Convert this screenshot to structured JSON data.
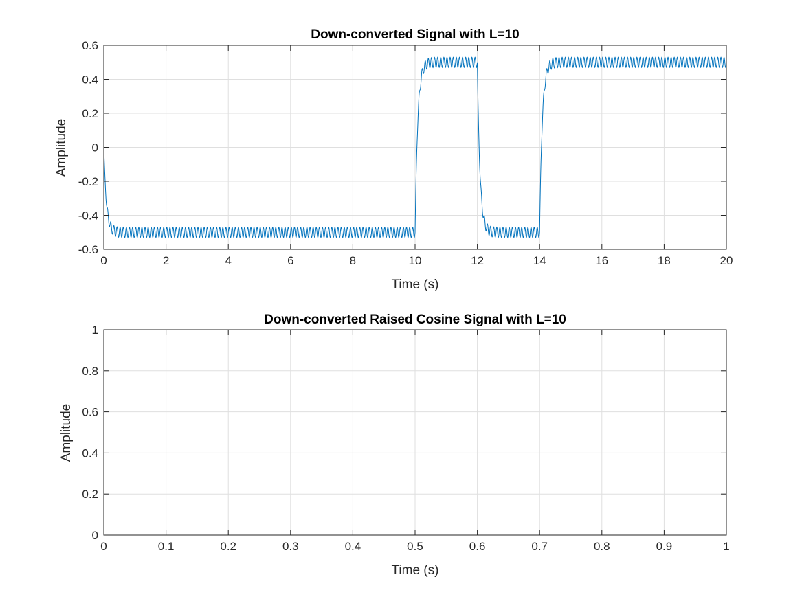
{
  "chart_data": [
    {
      "type": "line",
      "title": "Down-converted Signal with L=10",
      "xlabel": "Time (s)",
      "ylabel": "Amplitude",
      "xlim": [
        0,
        20
      ],
      "ylim": [
        -0.6,
        0.6
      ],
      "xticks": [
        0,
        2,
        4,
        6,
        8,
        10,
        12,
        14,
        16,
        18,
        20
      ],
      "xticklabels": [
        "0",
        "2",
        "4",
        "6",
        "8",
        "10",
        "12",
        "14",
        "16",
        "18",
        "20"
      ],
      "yticks": [
        -0.6,
        -0.4,
        -0.2,
        0,
        0.2,
        0.4,
        0.6
      ],
      "yticklabels": [
        "-0.6",
        "-0.4",
        "-0.2",
        "0",
        "0.2",
        "0.4",
        "0.6"
      ],
      "grid": true,
      "series": [
        {
          "color": "#0072BD",
          "segments": [
            {
              "t_start": 0,
              "t_end": 10,
              "level": -0.5
            },
            {
              "t_start": 10,
              "t_end": 12,
              "level": 0.5
            },
            {
              "t_start": 12,
              "t_end": 14,
              "level": -0.5
            },
            {
              "t_start": 14,
              "t_end": 20,
              "level": 0.5
            }
          ],
          "initial_value": 0,
          "ripple_amplitude": 0.03,
          "ripple_period": 0.1,
          "transition_time": 0.25
        }
      ]
    },
    {
      "type": "line",
      "title": "Down-converted Raised Cosine Signal with L=10",
      "xlabel": "Time (s)",
      "ylabel": "Amplitude",
      "xlim": [
        0,
        1
      ],
      "ylim": [
        0,
        1
      ],
      "xticks": [
        0,
        0.1,
        0.2,
        0.3,
        0.4,
        0.5,
        0.6,
        0.7,
        0.8,
        0.9,
        1
      ],
      "xticklabels": [
        "0",
        "0.1",
        "0.2",
        "0.3",
        "0.4",
        "0.5",
        "0.6",
        "0.7",
        "0.8",
        "0.9",
        "1"
      ],
      "yticks": [
        0,
        0.2,
        0.4,
        0.6,
        0.8,
        1
      ],
      "yticklabels": [
        "0",
        "0.2",
        "0.4",
        "0.6",
        "0.8",
        "1"
      ],
      "grid": true,
      "series": []
    }
  ]
}
